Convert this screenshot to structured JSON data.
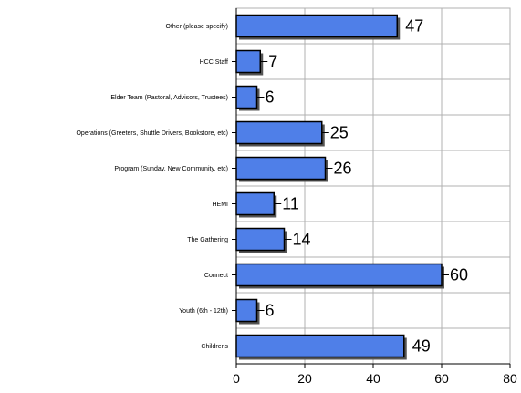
{
  "chart_data": {
    "type": "bar",
    "orientation": "horizontal",
    "categories": [
      "Other (please specify)",
      "HCC Staff",
      "Elder Team (Pastoral, Advisors, Trustees)",
      "Operations (Greeters, Shuttle Drivers, Bookstore, etc)",
      "Program (Sunday, New Community, etc)",
      "HEMI",
      "The Gathering",
      "Connect",
      "Youth (6th - 12th)",
      "Childrens"
    ],
    "values": [
      47,
      7,
      6,
      25,
      26,
      11,
      14,
      60,
      6,
      49
    ],
    "xlim": [
      0,
      80
    ],
    "xticks": [
      0,
      20,
      40,
      60,
      80
    ],
    "grid": true,
    "legend": "none",
    "bar_color": "#4f7fe8",
    "bar_outline_color": "#000000",
    "title": "",
    "xlabel": "",
    "ylabel": ""
  }
}
